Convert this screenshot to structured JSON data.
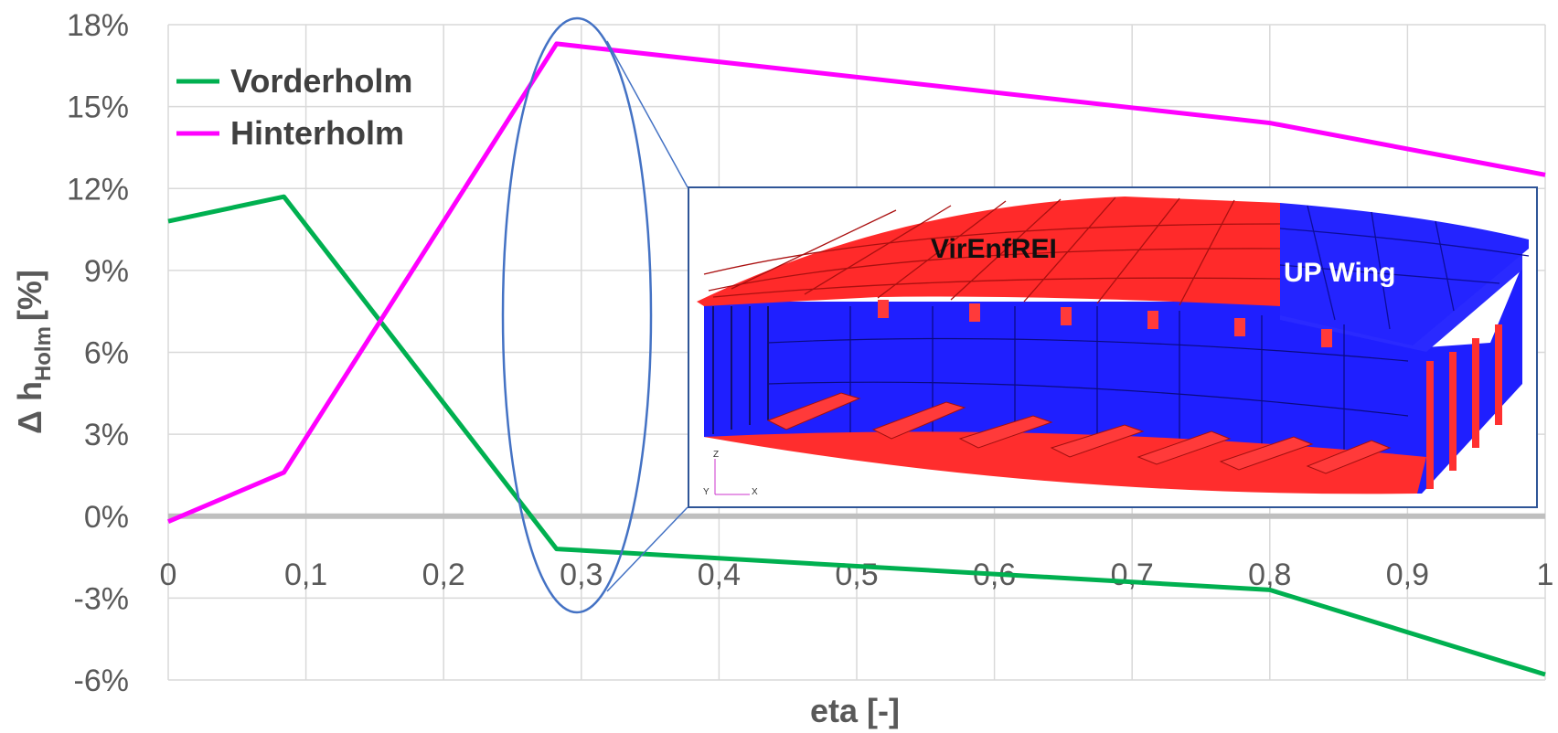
{
  "chart_data": {
    "type": "line",
    "xlabel": "eta [-]",
    "ylabel_main": "Δ h",
    "ylabel_subscript": "Holm",
    "ylabel_unit": "[%]",
    "xlim": [
      0,
      1
    ],
    "ylim": [
      -6,
      18
    ],
    "x_ticks": [
      0,
      0.1,
      0.2,
      0.3,
      0.4,
      0.5,
      0.6,
      0.7,
      0.8,
      0.9,
      1
    ],
    "x_tick_labels": [
      "0",
      "0,1",
      "0,2",
      "0,3",
      "0,4",
      "0,5",
      "0,6",
      "0,7",
      "0,8",
      "0,9",
      "1"
    ],
    "y_ticks": [
      18,
      15,
      12,
      9,
      6,
      3,
      0,
      -3,
      -6
    ],
    "y_tick_labels": [
      "18%",
      "15%",
      "12%",
      "9%",
      "6%",
      "3%",
      "0%",
      "-3%",
      "-6%"
    ],
    "grid": true,
    "legend_position": "top-left",
    "series": [
      {
        "name": "Vorderholm",
        "color": "#00b050",
        "x": [
          0,
          0.084,
          0.282,
          0.8,
          1.0
        ],
        "y": [
          10.8,
          11.7,
          -1.2,
          -2.7,
          -5.8
        ]
      },
      {
        "name": "Hinterholm",
        "color": "#ff00ff",
        "x": [
          0,
          0.084,
          0.282,
          0.8,
          1.0
        ],
        "y": [
          -0.2,
          1.6,
          17.3,
          14.4,
          12.5
        ]
      }
    ],
    "annotations": {
      "highlight_ellipse_color": "#4472c4",
      "inset_labels": [
        "VirEnfREI",
        "UP Wing"
      ],
      "inset_axis_labels": [
        "Z",
        "Y",
        "X"
      ]
    }
  },
  "colors": {
    "grid": "#d9d9d9",
    "zero_line": "#bfbfbf",
    "inset_red": "#ff3333",
    "inset_blue": "#2020ff"
  }
}
